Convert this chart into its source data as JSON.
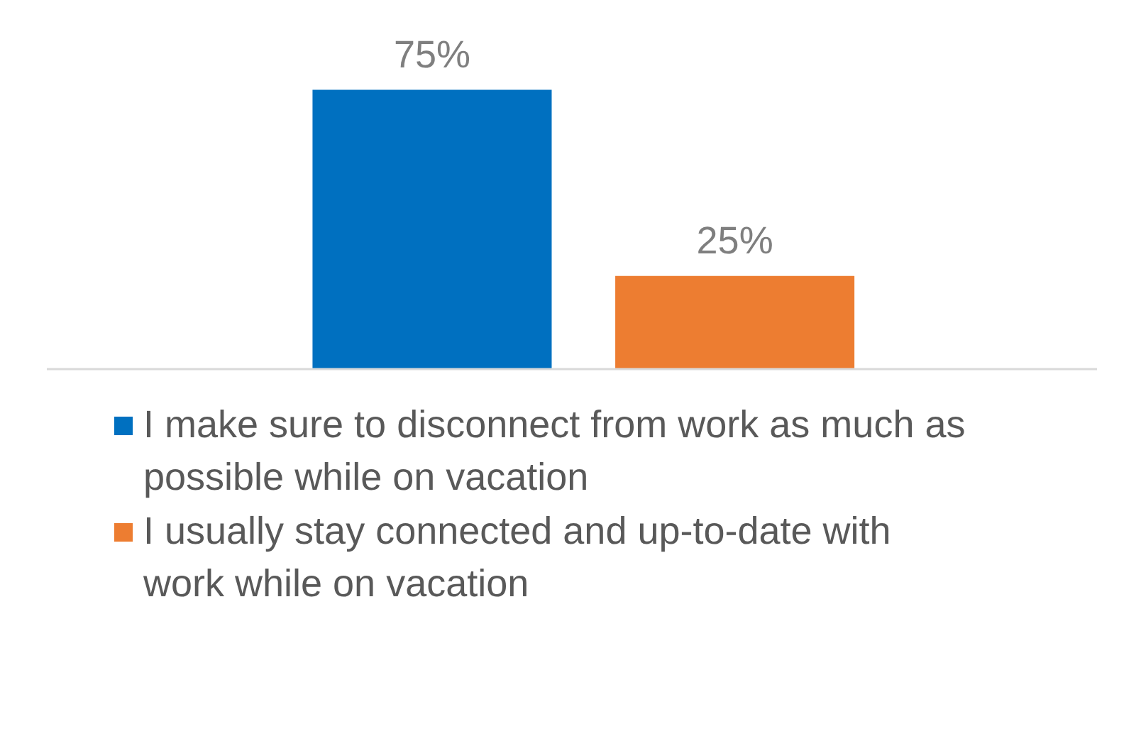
{
  "chart_data": {
    "type": "bar",
    "categories": [
      null
    ],
    "series": [
      {
        "name": "I make sure to disconnect from work as much as possible while on vacation",
        "color": "#0070c0",
        "values": [
          75
        ],
        "value_labels": [
          "75%"
        ]
      },
      {
        "name": "I usually stay connected and up-to-date with work while on vacation",
        "color": "#ed7d31",
        "values": [
          25
        ],
        "value_labels": [
          "25%"
        ]
      }
    ],
    "legend": "bottom"
  }
}
